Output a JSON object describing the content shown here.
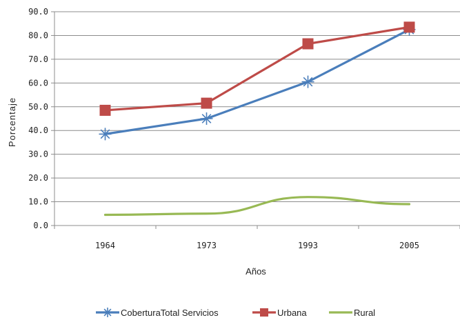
{
  "chart_data": {
    "type": "line",
    "title": "",
    "xlabel": "Años",
    "ylabel": "Porcentaje",
    "categories": [
      "1964",
      "1973",
      "1993",
      "2005"
    ],
    "ylim": [
      0,
      90
    ],
    "yticks": [
      "0.0",
      "10.0",
      "20.0",
      "30.0",
      "40.0",
      "50.0",
      "60.0",
      "70.0",
      "80.0",
      "90.0"
    ],
    "grid": "horizontal",
    "legend_position": "bottom",
    "series": [
      {
        "name": "CoberturaTotal Servicios",
        "values": [
          38.5,
          45.0,
          60.5,
          82.5
        ],
        "color": "#4a7ebb",
        "marker": "asterisk"
      },
      {
        "name": "Urbana",
        "values": [
          48.5,
          51.5,
          76.5,
          83.5
        ],
        "color": "#be4b48",
        "marker": "square"
      },
      {
        "name": "Rural",
        "values": [
          4.5,
          5.0,
          12.0,
          9.0
        ],
        "color": "#98b954",
        "marker": "none"
      }
    ]
  }
}
